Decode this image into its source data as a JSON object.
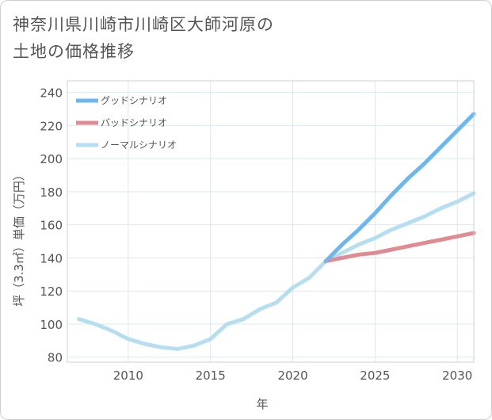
{
  "title_line1": "神奈川県川崎市川崎区大師河原の",
  "title_line2": "土地の価格推移",
  "chart_data": {
    "type": "line",
    "title": "神奈川県川崎市川崎区大師河原の土地の価格推移",
    "xlabel": "年",
    "ylabel": "坪（3.3㎡）単価（万円）",
    "xlim": [
      2006.3,
      2031
    ],
    "ylim": [
      77,
      247
    ],
    "xticks": [
      2010,
      2015,
      2020,
      2025,
      2030
    ],
    "yticks": [
      80,
      100,
      120,
      140,
      160,
      180,
      200,
      220,
      240
    ],
    "legend_position": "top-left",
    "series": [
      {
        "name": "グッドシナリオ",
        "color": "#6cb7ef",
        "x": [
          2022,
          2023,
          2024,
          2025,
          2026,
          2027,
          2028,
          2029,
          2030,
          2031
        ],
        "y": [
          138,
          148,
          157,
          167,
          178,
          188,
          197,
          207,
          217,
          227
        ]
      },
      {
        "name": "バッドシナリオ",
        "color": "#e08a94",
        "x": [
          2022,
          2023,
          2024,
          2025,
          2026,
          2027,
          2028,
          2029,
          2030,
          2031
        ],
        "y": [
          138,
          140,
          142,
          143,
          145,
          147,
          149,
          151,
          153,
          155
        ]
      },
      {
        "name": "ノーマルシナリオ",
        "color": "#b5dff0",
        "x": [
          2007,
          2008,
          2009,
          2010,
          2011,
          2012,
          2013,
          2014,
          2015,
          2016,
          2017,
          2018,
          2019,
          2020,
          2021,
          2022,
          2023,
          2024,
          2025,
          2026,
          2027,
          2028,
          2029,
          2030,
          2031
        ],
        "y": [
          103,
          100,
          96,
          91,
          88,
          86,
          85,
          87,
          91,
          100,
          103,
          109,
          113,
          122,
          128,
          138,
          143,
          148,
          152,
          157,
          161,
          165,
          170,
          174,
          179
        ]
      }
    ]
  }
}
